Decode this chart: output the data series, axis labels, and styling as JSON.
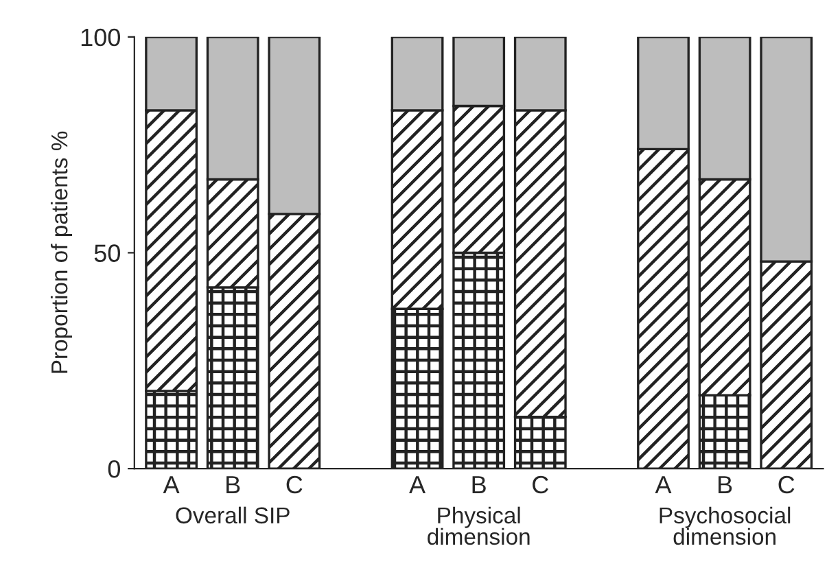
{
  "chart_data": {
    "type": "bar",
    "stacked": true,
    "ylabel": "Proportion of patients %",
    "categories": [
      "A",
      "B",
      "C",
      null,
      "A",
      "B",
      "C",
      null,
      "A",
      "B",
      "C"
    ],
    "series": [
      {
        "color": "#222222",
        "values": [
          18,
          42,
          0,
          null,
          37,
          50,
          12,
          null,
          0,
          17,
          0
        ]
      },
      {
        "color": "#222222",
        "values": [
          65,
          25,
          59,
          null,
          46,
          34,
          71,
          null,
          74,
          50,
          48
        ]
      },
      {
        "color": "#bdbdbd",
        "values": [
          17,
          33,
          41,
          null,
          17,
          16,
          17,
          null,
          26,
          33,
          52
        ]
      }
    ],
    "ylim": [
      0,
      100
    ],
    "yticks": [
      0,
      50,
      100
    ],
    "annotations": [
      "Overall SIP",
      "Physical\ndimension",
      "Psychosocial\ndimension"
    ]
  }
}
